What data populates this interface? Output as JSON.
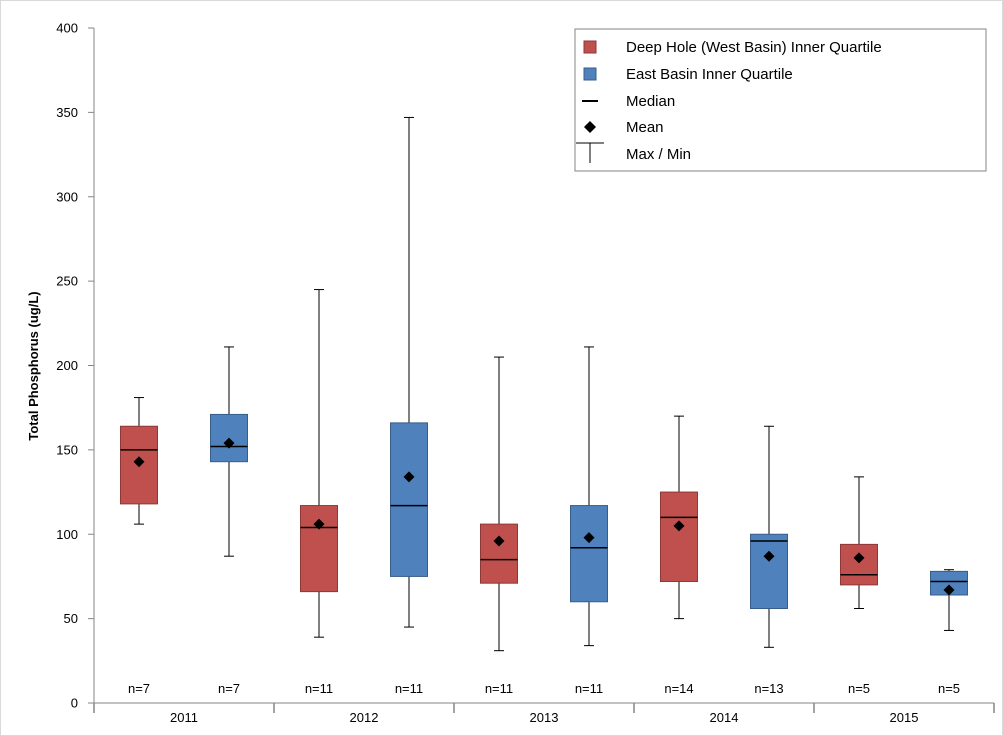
{
  "chart_data": {
    "type": "box",
    "title": "",
    "ylabel": "Total Phosphorus (ug/L)",
    "xlabel": "",
    "ylim": [
      0,
      400
    ],
    "yticks": [
      0,
      50,
      100,
      150,
      200,
      250,
      300,
      350,
      400
    ],
    "grid": false,
    "legend_position": "top-right",
    "groups": [
      "2011",
      "2012",
      "2013",
      "2014",
      "2015"
    ],
    "series": [
      {
        "name": "Deep Hole (West Basin) Inner Quartile",
        "color": "#c0504d",
        "stroke": "#8c3836"
      },
      {
        "name": "East Basin Inner Quartile",
        "color": "#4f81bd",
        "stroke": "#385d8a"
      }
    ],
    "legend": [
      {
        "label": "Deep Hole (West Basin) Inner Quartile",
        "symbol": "red-square"
      },
      {
        "label": "East Basin Inner Quartile",
        "symbol": "blue-square"
      },
      {
        "label": "Median",
        "symbol": "dash"
      },
      {
        "label": "Mean",
        "symbol": "diamond"
      },
      {
        "label": "Max / Min",
        "symbol": "whisker-cap"
      }
    ],
    "boxes": [
      {
        "group": "2011",
        "series": 0,
        "min": 106,
        "q1": 118,
        "median": 150,
        "q3": 164,
        "max": 181,
        "mean": 143,
        "n": "n=7"
      },
      {
        "group": "2011",
        "series": 1,
        "min": 87,
        "q1": 143,
        "median": 152,
        "q3": 171,
        "max": 211,
        "mean": 154,
        "n": "n=7"
      },
      {
        "group": "2012",
        "series": 0,
        "min": 39,
        "q1": 66,
        "median": 104,
        "q3": 117,
        "max": 245,
        "mean": 106,
        "n": "n=11"
      },
      {
        "group": "2012",
        "series": 1,
        "min": 45,
        "q1": 75,
        "median": 117,
        "q3": 166,
        "max": 347,
        "mean": 134,
        "n": "n=11"
      },
      {
        "group": "2013",
        "series": 0,
        "min": 31,
        "q1": 71,
        "median": 85,
        "q3": 106,
        "max": 205,
        "mean": 96,
        "n": "n=11"
      },
      {
        "group": "2013",
        "series": 1,
        "min": 34,
        "q1": 60,
        "median": 92,
        "q3": 117,
        "max": 211,
        "mean": 98,
        "n": "n=11"
      },
      {
        "group": "2014",
        "series": 0,
        "min": 50,
        "q1": 72,
        "median": 110,
        "q3": 125,
        "max": 170,
        "mean": 105,
        "n": "n=14"
      },
      {
        "group": "2014",
        "series": 1,
        "min": 33,
        "q1": 56,
        "median": 96,
        "q3": 100,
        "max": 164,
        "mean": 87,
        "n": "n=13"
      },
      {
        "group": "2015",
        "series": 0,
        "min": 56,
        "q1": 70,
        "median": 76,
        "q3": 94,
        "max": 134,
        "mean": 86,
        "n": "n=5"
      },
      {
        "group": "2015",
        "series": 1,
        "min": 43,
        "q1": 64,
        "median": 72,
        "q3": 78,
        "max": 79,
        "mean": 67,
        "n": "n=5"
      }
    ]
  }
}
